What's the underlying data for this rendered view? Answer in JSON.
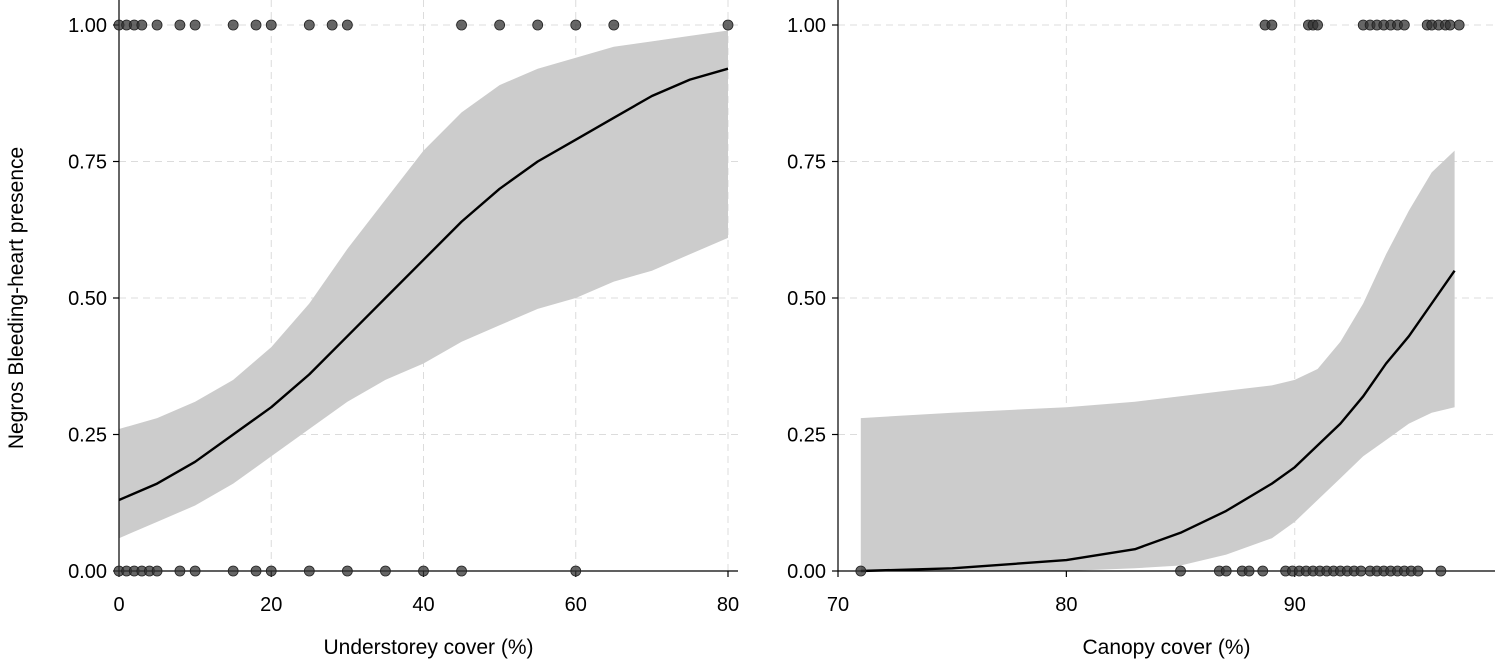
{
  "shared": {
    "ylabel": "Negros Bleeding-heart presence",
    "yticks": [
      0,
      0.25,
      0.5,
      0.75,
      1
    ],
    "ytick_labels": [
      "0.00",
      "0.25",
      "0.50",
      "0.75",
      "1.00"
    ]
  },
  "chart_data": [
    {
      "type": "line",
      "panel": "left",
      "xlabel": "Understorey cover (%)",
      "xlim": [
        0,
        80
      ],
      "ylim": [
        0,
        1
      ],
      "xticks": [
        0,
        20,
        40,
        60,
        80
      ],
      "xtick_labels": [
        "0",
        "20",
        "40",
        "60",
        "80"
      ],
      "grid": true,
      "fit": {
        "x": [
          0,
          5,
          10,
          15,
          20,
          25,
          30,
          35,
          40,
          45,
          50,
          55,
          60,
          65,
          70,
          75,
          80
        ],
        "y": [
          0.13,
          0.16,
          0.2,
          0.25,
          0.3,
          0.36,
          0.43,
          0.5,
          0.57,
          0.64,
          0.7,
          0.75,
          0.79,
          0.83,
          0.87,
          0.9,
          0.92
        ]
      },
      "ci_upper": [
        0.26,
        0.28,
        0.31,
        0.35,
        0.41,
        0.49,
        0.59,
        0.68,
        0.77,
        0.84,
        0.89,
        0.92,
        0.94,
        0.96,
        0.97,
        0.98,
        0.99
      ],
      "ci_lower": [
        0.06,
        0.09,
        0.12,
        0.16,
        0.21,
        0.26,
        0.31,
        0.35,
        0.38,
        0.42,
        0.45,
        0.48,
        0.5,
        0.53,
        0.55,
        0.58,
        0.61
      ],
      "observations": {
        "present": [
          0,
          1,
          2,
          3,
          5,
          8,
          10,
          15,
          18,
          20,
          25,
          28,
          30,
          45,
          50,
          55,
          60,
          65,
          80
        ],
        "absent": [
          0,
          1,
          2,
          3,
          4,
          5,
          8,
          10,
          15,
          18,
          20,
          25,
          30,
          35,
          40,
          45,
          60
        ]
      }
    },
    {
      "type": "line",
      "panel": "right",
      "xlabel": "Canopy cover (%)",
      "xlim": [
        70,
        97.5
      ],
      "ylim": [
        0,
        1
      ],
      "xticks": [
        70,
        80,
        90
      ],
      "xtick_labels": [
        "70",
        "80",
        "90"
      ],
      "grid": true,
      "fit": {
        "x": [
          71,
          75,
          80,
          83,
          85,
          87,
          89,
          90,
          91,
          92,
          93,
          94,
          95,
          96,
          97
        ],
        "y": [
          0.0,
          0.005,
          0.02,
          0.04,
          0.07,
          0.11,
          0.16,
          0.19,
          0.23,
          0.27,
          0.32,
          0.38,
          0.43,
          0.49,
          0.55
        ]
      },
      "ci_upper": [
        0.28,
        0.29,
        0.3,
        0.31,
        0.32,
        0.33,
        0.34,
        0.35,
        0.37,
        0.42,
        0.49,
        0.58,
        0.66,
        0.73,
        0.77
      ],
      "ci_lower": [
        0.0,
        0.0,
        0.0,
        0.005,
        0.01,
        0.03,
        0.06,
        0.09,
        0.13,
        0.17,
        0.21,
        0.24,
        0.27,
        0.29,
        0.3
      ],
      "observations": {
        "present": [
          88.7,
          89.0,
          90.6,
          90.8,
          91.0,
          93.0,
          93.3,
          93.6,
          93.9,
          94.2,
          94.5,
          94.8,
          95.8,
          96.0,
          96.3,
          96.6,
          96.8,
          97.2
        ],
        "absent": [
          71.0,
          85.0,
          86.7,
          87.0,
          87.7,
          88.0,
          88.6,
          89.6,
          89.9,
          90.2,
          90.5,
          90.8,
          91.1,
          91.4,
          91.7,
          92.0,
          92.3,
          92.6,
          92.9,
          93.3,
          93.6,
          93.9,
          94.2,
          94.5,
          94.8,
          95.1,
          95.4,
          96.4
        ]
      }
    }
  ]
}
